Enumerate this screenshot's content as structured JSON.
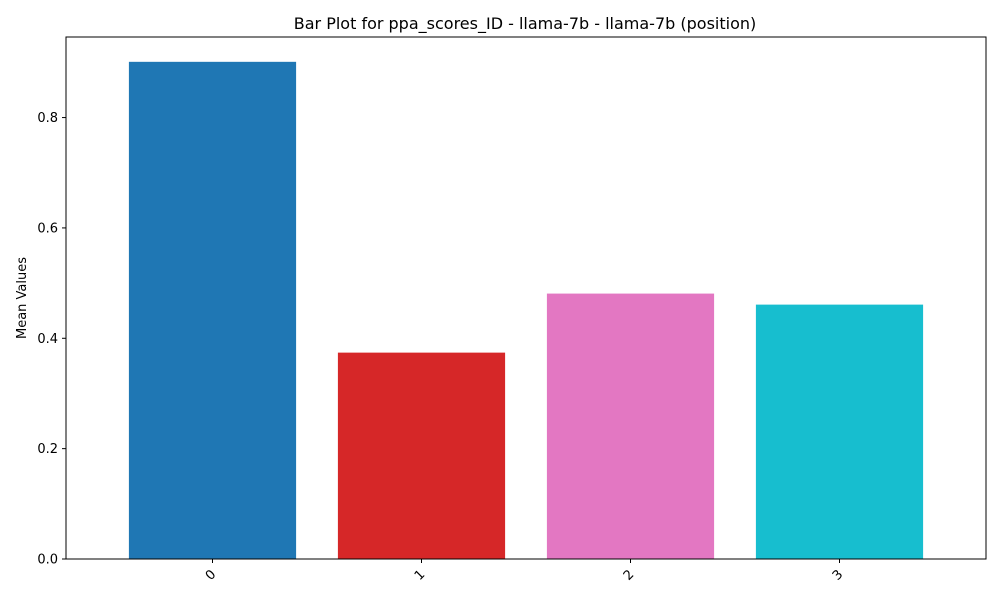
{
  "chart_data": {
    "type": "bar",
    "title": "Bar Plot for ppa_scores_ID - llama-7b - llama-7b (position)",
    "xlabel": "",
    "ylabel": "Mean Values",
    "categories": [
      "0",
      "1",
      "2",
      "3"
    ],
    "values": [
      0.901,
      0.374,
      0.481,
      0.461
    ],
    "colors": [
      "#1f77b4",
      "#d62728",
      "#e377c2",
      "#17becf"
    ],
    "ylim": [
      0,
      0.946
    ],
    "yticks": [
      0.0,
      0.2,
      0.4,
      0.6,
      0.8
    ],
    "ytick_labels": [
      "0.0",
      "0.2",
      "0.4",
      "0.6",
      "0.8"
    ],
    "grid": false,
    "xtick_rotation_deg": 45
  }
}
